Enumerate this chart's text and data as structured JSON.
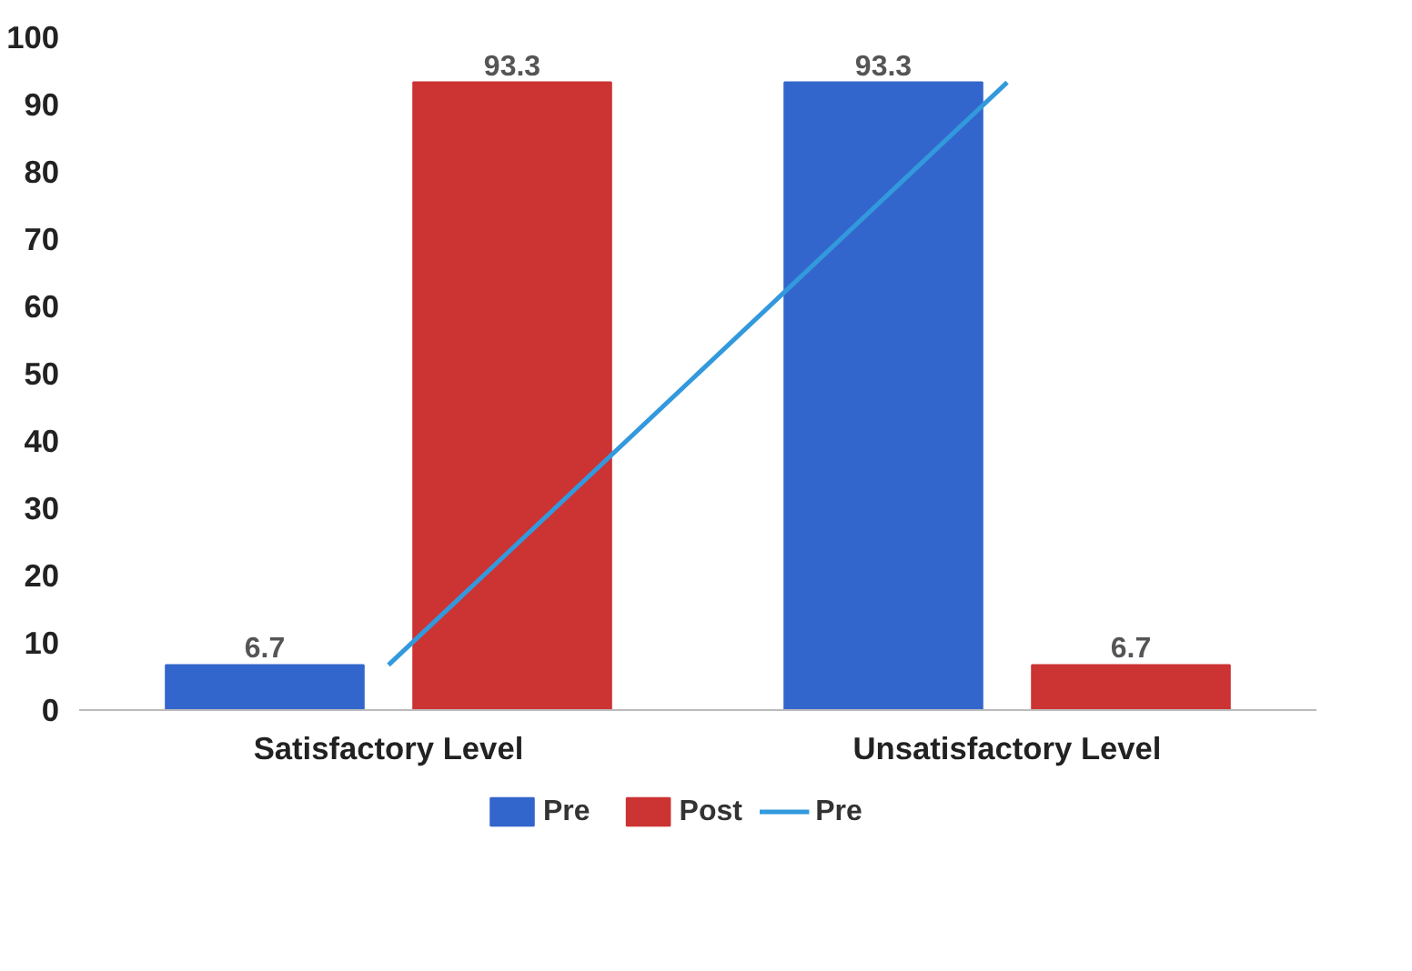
{
  "chart_data": {
    "type": "bar",
    "categories": [
      "Satisfactory Level",
      "Unsatisfactory Level"
    ],
    "series": [
      {
        "name": "Pre",
        "color": "#3366cc",
        "values": [
          6.7,
          93.3
        ],
        "value_labels": [
          "6.7",
          "93.3"
        ]
      },
      {
        "name": "Post",
        "color": "#cc3333",
        "values": [
          93.3,
          6.7
        ],
        "value_labels": [
          "93.3",
          "6.7"
        ]
      },
      {
        "name": "Pre",
        "type": "line",
        "color": "#3399dd",
        "values": [
          6.7,
          93.3
        ]
      }
    ],
    "ylim": [
      0,
      100
    ],
    "yticks": [
      0,
      10,
      20,
      30,
      40,
      50,
      60,
      70,
      80,
      90,
      100
    ],
    "grid": false,
    "legend": "bottom"
  }
}
